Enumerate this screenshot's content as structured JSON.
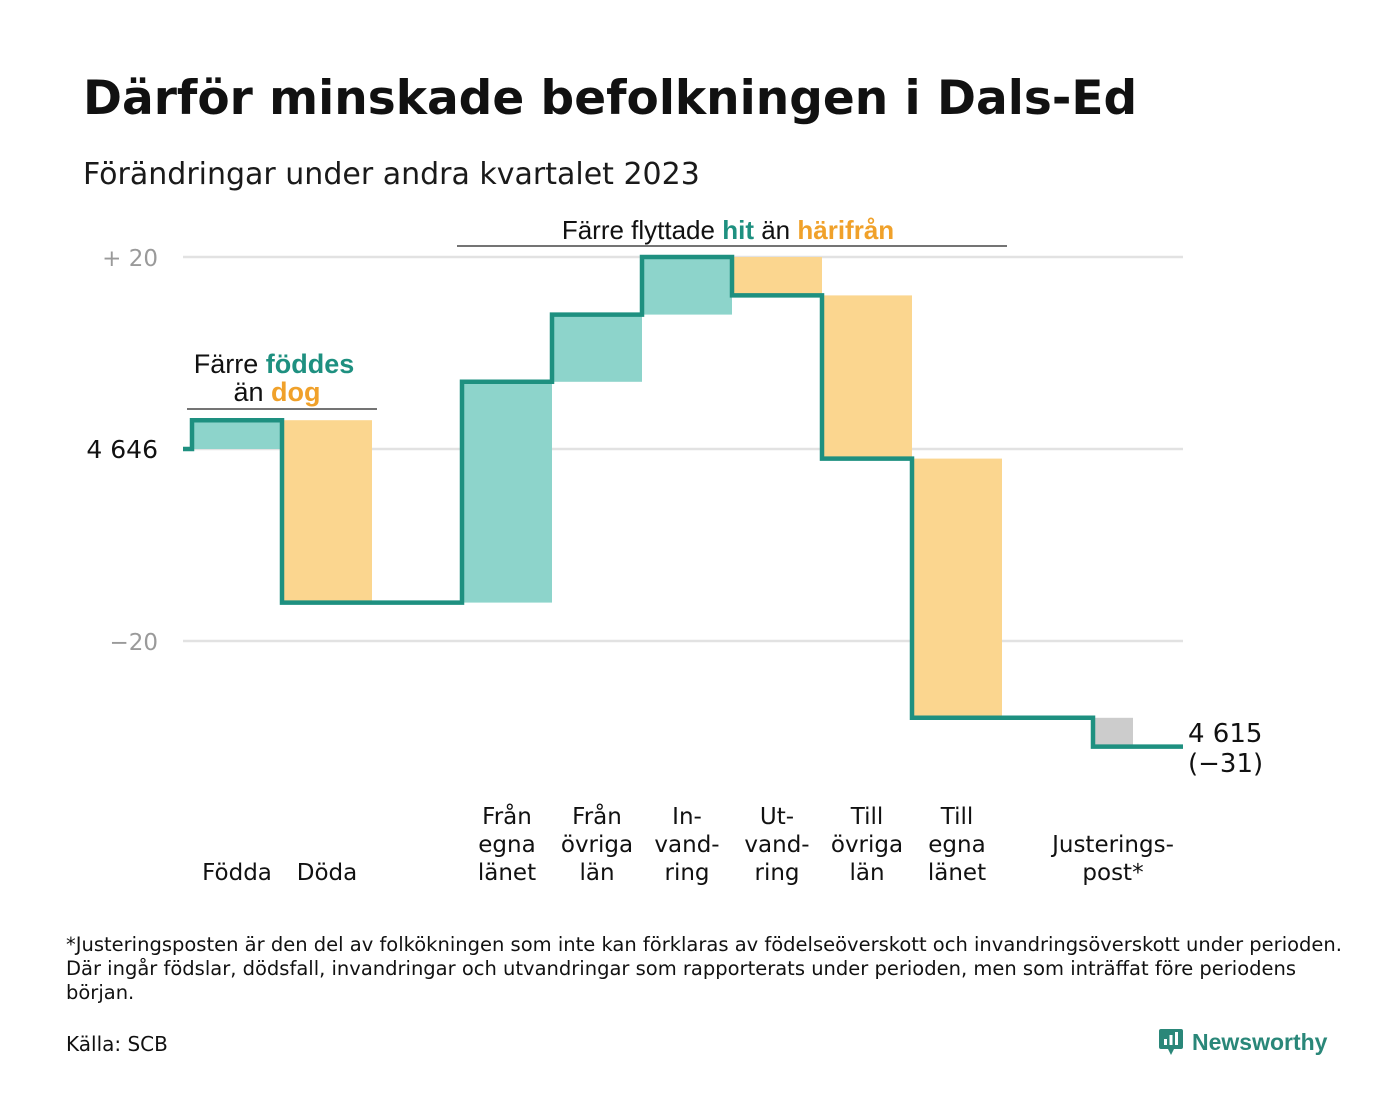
{
  "title": "Därför minskade befolkningen i Dals-Ed",
  "subtitle": "Förändringar under andra kvartalet 2023",
  "footnote": "*Justeringsposten är den del av folkökningen som inte kan förklaras av födelseöverskott och invandringsöverskott under perioden. Där ingår födslar, dödsfall, invandringar och utvandringar som rapporterats under perioden, men som inträffat före periodens början.",
  "source": "Källa: SCB",
  "brand": "Newsworthy",
  "colors": {
    "increase": "#8dd4cb",
    "decrease": "#fbd68f",
    "adjustment": "#cccccc",
    "line": "#1e9080",
    "teal_text": "#1e9080",
    "orange_text": "#f0a12a",
    "grid": "#e2e2e2",
    "axis_text": "#9a9a9a"
  },
  "annotations": {
    "births": {
      "line1_prefix": "Färre ",
      "line1_highlight": "föddes",
      "line2_prefix": "än ",
      "line2_highlight": "dog"
    },
    "migration": {
      "prefix": "Färre flyttade ",
      "highlight1": "hit",
      "middle": " än ",
      "highlight2": "härifrån"
    }
  },
  "chart_data": {
    "type": "waterfall",
    "start_value": 4646,
    "end_value": 4615,
    "end_label": "4 615",
    "end_change_label": "(−31)",
    "y_ticks": [
      {
        "value": 20,
        "label": "+  20",
        "style": "muted"
      },
      {
        "value": 0,
        "label": "4  646",
        "style": "dark"
      },
      {
        "value": -20,
        "label": "−20",
        "style": "muted"
      }
    ],
    "ylim": [
      -32,
      21
    ],
    "steps": [
      {
        "label": [
          "Födda"
        ],
        "change": 3,
        "kind": "increase"
      },
      {
        "label": [
          "Döda"
        ],
        "change": -19,
        "kind": "decrease"
      },
      {
        "label": [
          "Från",
          "egna",
          "länet"
        ],
        "change": 23,
        "kind": "increase"
      },
      {
        "label": [
          "Från",
          "övriga",
          "län"
        ],
        "change": 7,
        "kind": "increase"
      },
      {
        "label": [
          "In-",
          "vand-",
          "ring"
        ],
        "change": 6,
        "kind": "increase"
      },
      {
        "label": [
          "Ut-",
          "vand-",
          "ring"
        ],
        "change": -4,
        "kind": "decrease"
      },
      {
        "label": [
          "Till",
          "övriga",
          "län"
        ],
        "change": -17,
        "kind": "decrease"
      },
      {
        "label": [
          "Till",
          "egna",
          "länet"
        ],
        "change": -27,
        "kind": "decrease"
      },
      {
        "label": [
          "Justerings-",
          "post*"
        ],
        "change": -3,
        "kind": "adjustment"
      }
    ]
  }
}
